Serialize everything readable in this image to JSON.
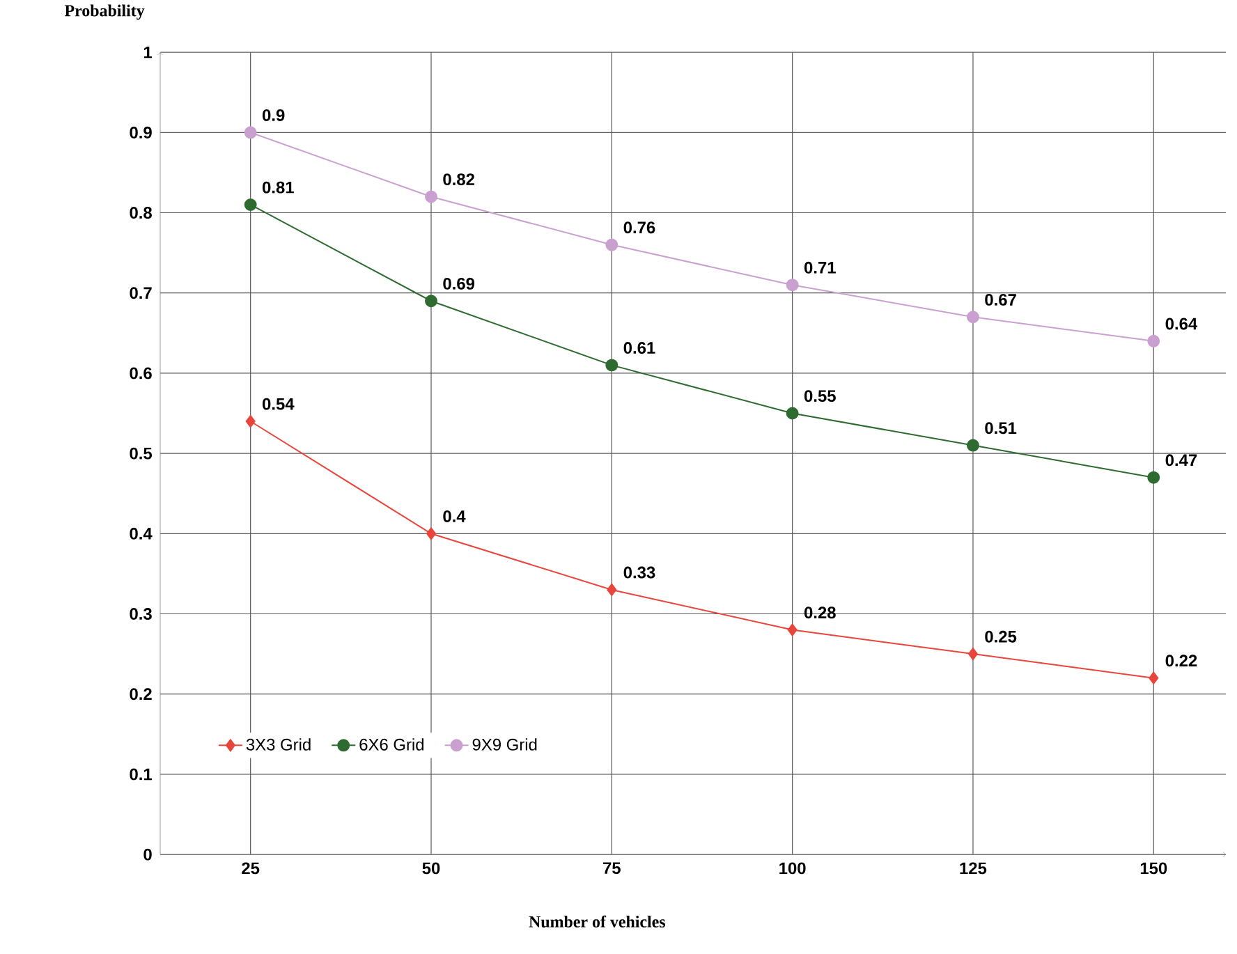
{
  "chart_data": {
    "type": "line",
    "xlabel": "Number of vehicles",
    "ylabel": "Probability",
    "x": [
      25,
      50,
      75,
      100,
      125,
      150
    ],
    "series": [
      {
        "name": "3X3 Grid",
        "color": "#e8463c",
        "marker": "diamond",
        "values": [
          0.54,
          0.4,
          0.33,
          0.28,
          0.25,
          0.22
        ]
      },
      {
        "name": "6X6 Grid",
        "color": "#2e6b30",
        "marker": "circle",
        "values": [
          0.81,
          0.69,
          0.61,
          0.55,
          0.51,
          0.47
        ]
      },
      {
        "name": "9X9 Grid",
        "color": "#c9a0d0",
        "marker": "circle",
        "values": [
          0.9,
          0.82,
          0.76,
          0.71,
          0.67,
          0.64
        ]
      }
    ],
    "xlim": [
      12.5,
      160
    ],
    "xticks": [
      25,
      50,
      75,
      100,
      125,
      150
    ],
    "ylim": [
      0,
      1
    ],
    "yticks": [
      0,
      0.1,
      0.2,
      0.3,
      0.4,
      0.5,
      0.6,
      0.7,
      0.8,
      0.9,
      1
    ],
    "grid": true,
    "legend": "bottom left",
    "data_labels": true,
    "line_style": "solid"
  }
}
